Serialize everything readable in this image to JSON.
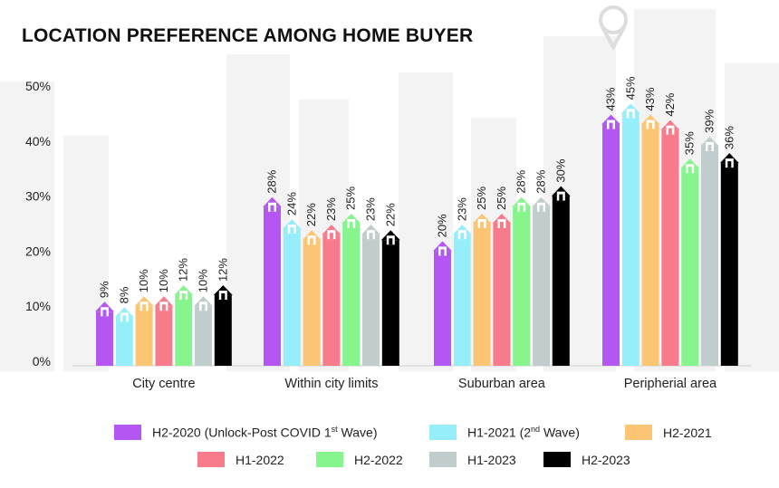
{
  "colors": {
    "H2-2020": "#b356f2",
    "H1-2021": "#96eefa",
    "H2-2021": "#fbc573",
    "H1-2022": "#f87b8c",
    "H2-2022": "#86f58e",
    "H1-2023": "#c1cdcc",
    "H2-2023": "#000000"
  },
  "legend": {
    "items": [
      {
        "main": "H2-2020 (Unlock-Post COVID 1",
        "sup": "st",
        "tail": " Wave)",
        "color": "#b356f2"
      },
      {
        "main": "H1-2021 (2",
        "sup": "nd",
        "tail": " Wave)",
        "color": "#96eefa"
      },
      {
        "main": "H2-2021",
        "sup": "",
        "tail": "",
        "color": "#fbc573"
      },
      {
        "main": "H1-2022",
        "sup": "",
        "tail": "",
        "color": "#f87b8c"
      },
      {
        "main": "H2-2022",
        "sup": "",
        "tail": "",
        "color": "#86f58e"
      },
      {
        "main": "H1-2023",
        "sup": "",
        "tail": "",
        "color": "#c1cdcc"
      },
      {
        "main": "H2-2023",
        "sup": "",
        "tail": "",
        "color": "#000000"
      }
    ]
  },
  "chart_data": {
    "type": "bar",
    "title": "LOCATION PREFERENCE AMONG HOME BUYER",
    "xlabel": "",
    "ylabel": "",
    "ylim": [
      0,
      50
    ],
    "yticks": [
      "0%",
      "10%",
      "20%",
      "30%",
      "40%",
      "50%"
    ],
    "categories": [
      "City centre",
      "Within city limits",
      "Suburban area",
      "Peripherial area"
    ],
    "series": [
      {
        "name": "H2-2020 (Unlock-Post COVID 1st Wave)",
        "values": [
          9,
          28,
          20,
          43
        ],
        "labels": [
          "9%",
          "28%",
          "20%",
          "43%"
        ]
      },
      {
        "name": "H1-2021 (2nd Wave)",
        "values": [
          8,
          24,
          23,
          45
        ],
        "labels": [
          "8%",
          "24%",
          "23%",
          "45%"
        ]
      },
      {
        "name": "H2-2021",
        "values": [
          10,
          22,
          25,
          43
        ],
        "labels": [
          "10%",
          "22%",
          "25%",
          "43%"
        ]
      },
      {
        "name": "H1-2022",
        "values": [
          10,
          23,
          25,
          42
        ],
        "labels": [
          "10%",
          "23%",
          "25%",
          "42%"
        ]
      },
      {
        "name": "H2-2022",
        "values": [
          12,
          25,
          28,
          35
        ],
        "labels": [
          "12%",
          "25%",
          "28%",
          "35%"
        ]
      },
      {
        "name": "H1-2023",
        "values": [
          10,
          23,
          28,
          39
        ],
        "labels": [
          "10%",
          "23%",
          "28%",
          "39%"
        ]
      },
      {
        "name": "H2-2023",
        "values": [
          12,
          22,
          30,
          36
        ],
        "labels": [
          "12%",
          "22%",
          "30%",
          "36%"
        ]
      }
    ],
    "grid": false,
    "legend_position": "bottom"
  }
}
